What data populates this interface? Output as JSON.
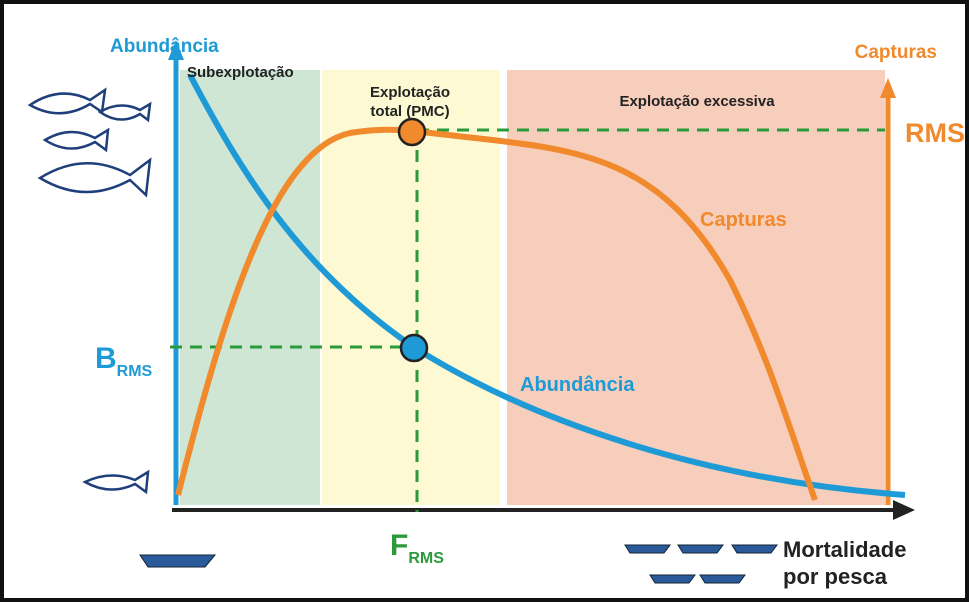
{
  "axes": {
    "y_left": "Abundância",
    "y_right": "Capturas",
    "x": [
      "Mortalidade",
      "por pesca"
    ]
  },
  "zones": [
    {
      "label": [
        "Subexplotação"
      ]
    },
    {
      "label": [
        "Explotação",
        "total (PMC)"
      ]
    },
    {
      "label": [
        "Explotação excessiva"
      ]
    }
  ],
  "curves": [
    {
      "label": "Capturas"
    },
    {
      "label": "Abundância"
    }
  ],
  "markers": {
    "rms": "RMS",
    "b_rms": {
      "main": "B",
      "sub": "RMS"
    },
    "f_rms": {
      "main": "F",
      "sub": "RMS"
    }
  }
}
